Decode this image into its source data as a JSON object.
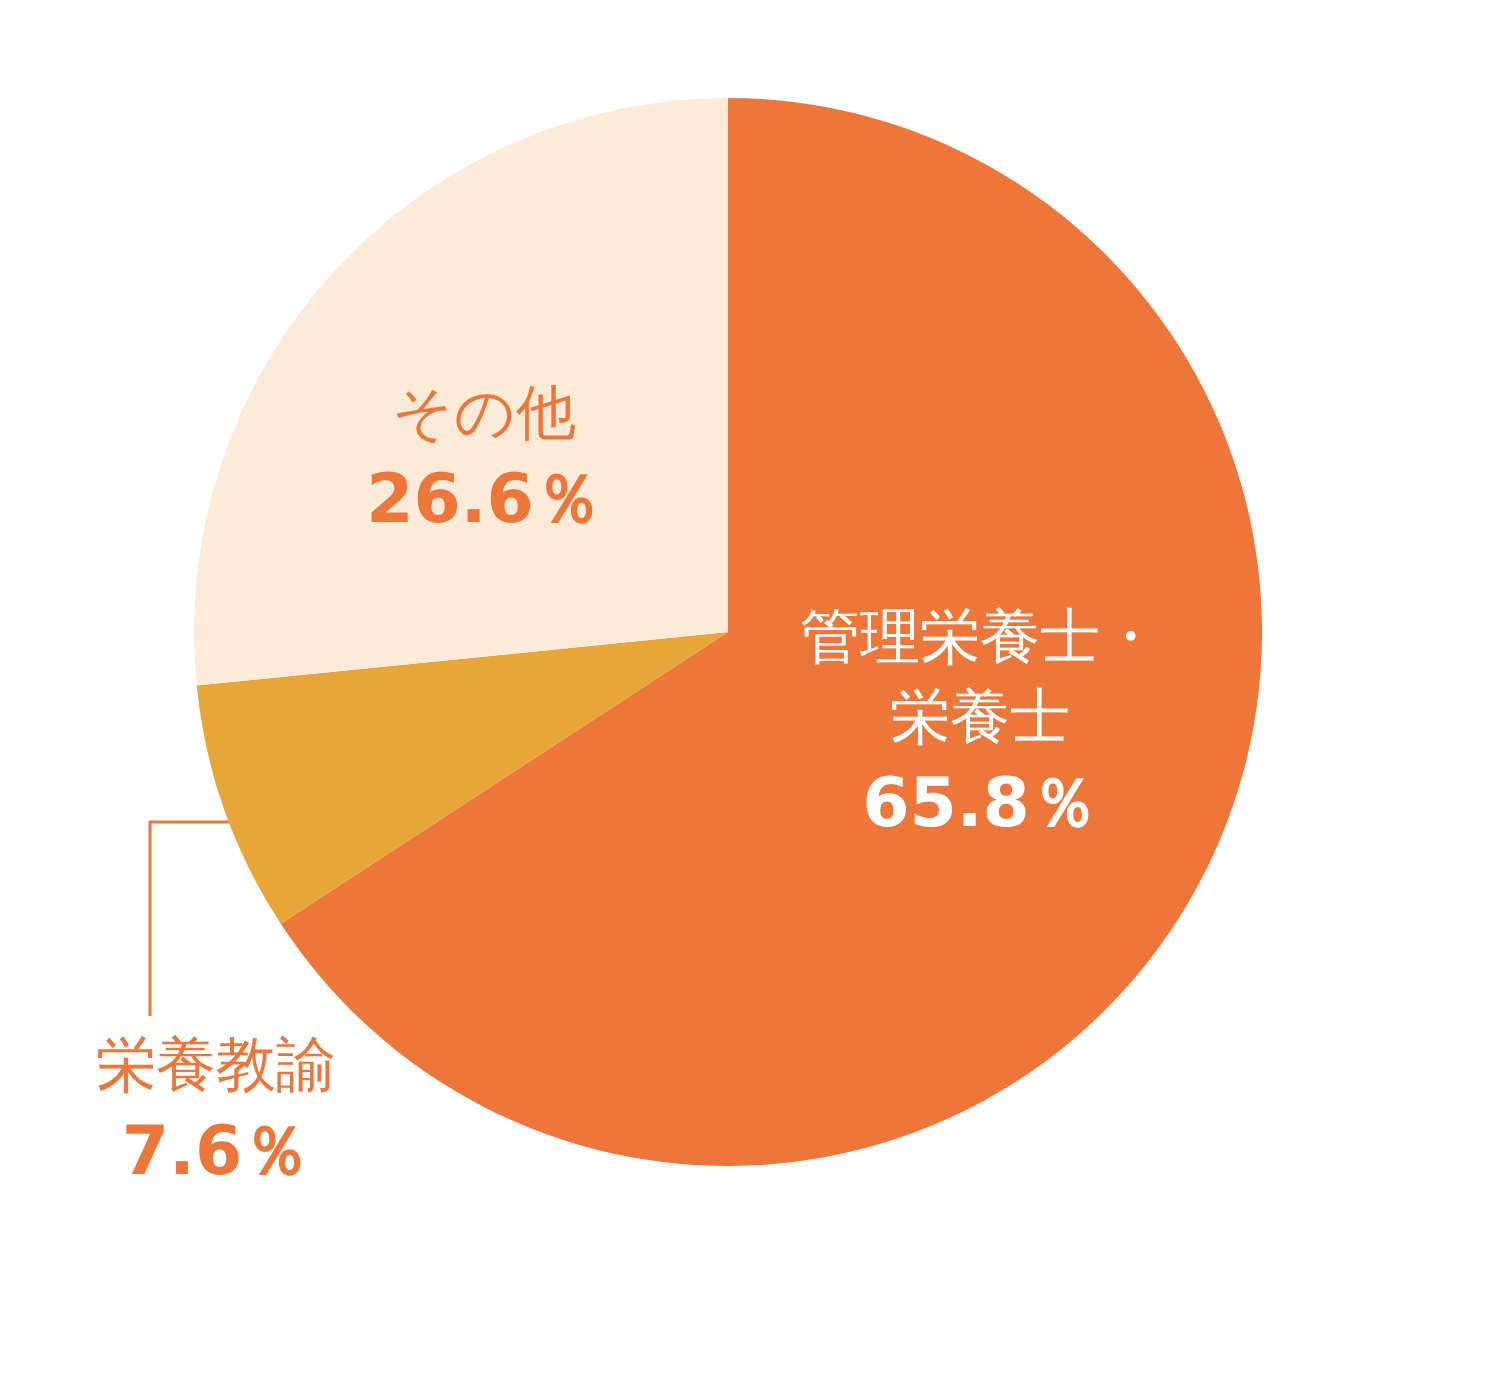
{
  "chart_data": {
    "type": "pie",
    "categories": [
      "管理栄養士・栄養士",
      "栄養教諭",
      "その他"
    ],
    "values": [
      65.8,
      7.6,
      26.6
    ],
    "value_labels": [
      "65.8％",
      "7.6％",
      "26.6％"
    ],
    "colors": [
      "#ed773b",
      "#e8a538",
      "#fdebd8"
    ]
  }
}
